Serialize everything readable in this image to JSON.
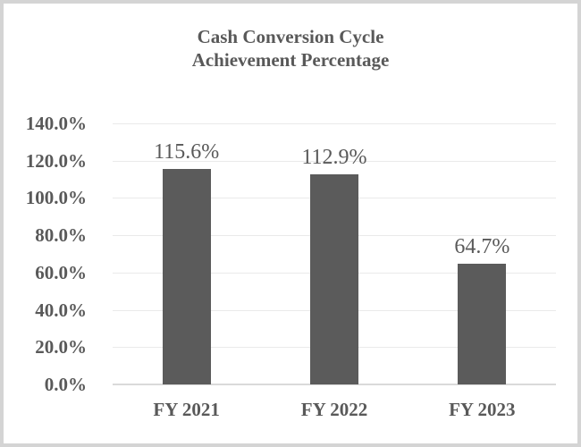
{
  "title": {
    "line1": "Cash Conversion Cycle",
    "line2": "Achievement Percentage"
  },
  "chart_data": {
    "type": "bar",
    "title": "Cash Conversion Cycle Achievement Percentage",
    "categories": [
      "FY 2021",
      "FY 2022",
      "FY 2023"
    ],
    "values": [
      115.6,
      112.9,
      64.7
    ],
    "data_labels": [
      "115.6%",
      "112.9%",
      "64.7%"
    ],
    "xlabel": "",
    "ylabel": "",
    "ylim": [
      0,
      140
    ],
    "ytick_step": 20,
    "ytick_labels": [
      "0.0%",
      "20.0%",
      "40.0%",
      "60.0%",
      "80.0%",
      "100.0%",
      "120.0%",
      "140.0%"
    ],
    "grid": true,
    "legend": "none",
    "colors": {
      "bar": "#5b5b5b",
      "text": "#595959",
      "gridline": "#eaeaea",
      "axis_line": "#dadada",
      "frame_border": "#d4d4d4",
      "background": "#ffffff"
    }
  }
}
